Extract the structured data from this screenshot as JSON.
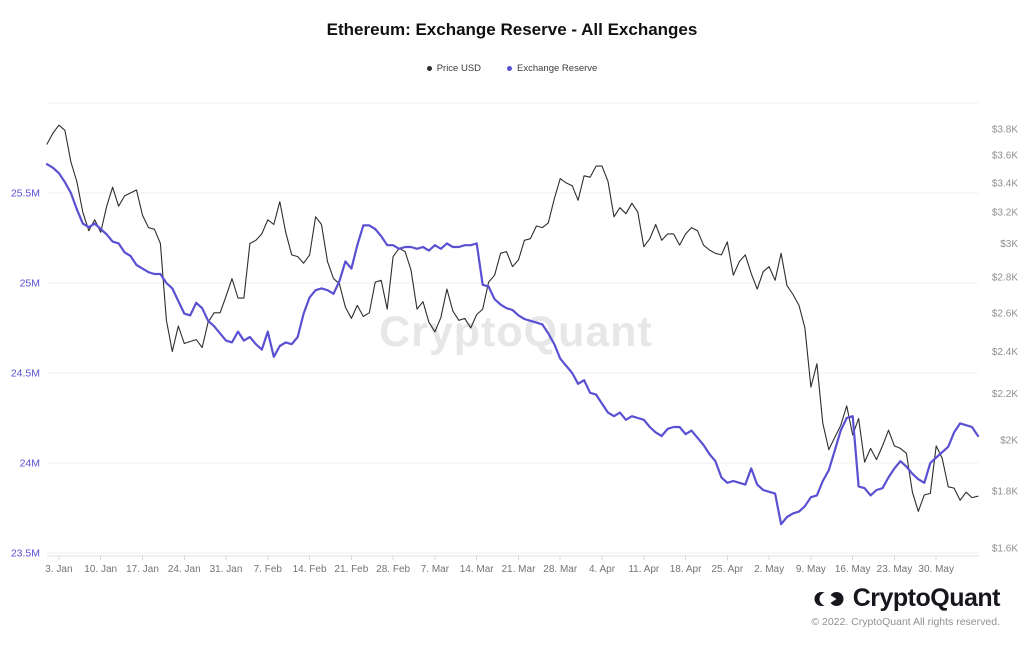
{
  "title": "Ethereum: Exchange Reserve - All Exchanges",
  "legend": [
    {
      "label": "Price USD",
      "color": "#2e2e2e"
    },
    {
      "label": "Exchange Reserve",
      "color": "#5a50d2"
    }
  ],
  "watermark": "CryptoQuant",
  "footer": {
    "logo_text": "CryptoQuant",
    "logo_icon": "cryptoquant-mark-icon",
    "copyright": "© 2022. CryptoQuant All rights reserved."
  },
  "chart_data": {
    "type": "line",
    "title": "Ethereum: Exchange Reserve - All Exchanges",
    "x_start_date": "1. Jan 2022",
    "x_end_date": "6. Jun 2022",
    "x_frequency": "daily",
    "grid": "horizontal-only",
    "legend_position": "top-center",
    "x_ticks": [
      {
        "label": "3. Jan",
        "day_index": 2
      },
      {
        "label": "10. Jan",
        "day_index": 9
      },
      {
        "label": "17. Jan",
        "day_index": 16
      },
      {
        "label": "24. Jan",
        "day_index": 23
      },
      {
        "label": "31. Jan",
        "day_index": 30
      },
      {
        "label": "7. Feb",
        "day_index": 37
      },
      {
        "label": "14. Feb",
        "day_index": 44
      },
      {
        "label": "21. Feb",
        "day_index": 51
      },
      {
        "label": "28. Feb",
        "day_index": 58
      },
      {
        "label": "7. Mar",
        "day_index": 65
      },
      {
        "label": "14. Mar",
        "day_index": 72
      },
      {
        "label": "21. Mar",
        "day_index": 79
      },
      {
        "label": "28. Mar",
        "day_index": 86
      },
      {
        "label": "4. Apr",
        "day_index": 93
      },
      {
        "label": "11. Apr",
        "day_index": 100
      },
      {
        "label": "18. Apr",
        "day_index": 107
      },
      {
        "label": "25. Apr",
        "day_index": 114
      },
      {
        "label": "2. May",
        "day_index": 121
      },
      {
        "label": "9. May",
        "day_index": 128
      },
      {
        "label": "16. May",
        "day_index": 135
      },
      {
        "label": "23. May",
        "day_index": 142
      },
      {
        "label": "30. May",
        "day_index": 149
      }
    ],
    "left_axis": {
      "series": "Exchange Reserve",
      "unit": "ETH (millions)",
      "scale": "linear",
      "color": "#5a50d2",
      "ticks": [
        {
          "label": "23.5M",
          "value": 23.5
        },
        {
          "label": "24M",
          "value": 24.0
        },
        {
          "label": "24.5M",
          "value": 24.5
        },
        {
          "label": "25M",
          "value": 25.0
        },
        {
          "label": "25.5M",
          "value": 25.5
        }
      ],
      "grid_values": [
        23.5,
        24.0,
        24.5,
        25.0,
        25.5,
        26.0
      ],
      "range": [
        23.48,
        26.0
      ]
    },
    "right_axis": {
      "series": "Price USD",
      "unit": "USD",
      "scale": "log",
      "color": "#8f8f8f",
      "ticks": [
        {
          "label": "$1.6K",
          "value": 1600
        },
        {
          "label": "$1.8K",
          "value": 1800
        },
        {
          "label": "$2K",
          "value": 2000
        },
        {
          "label": "$2.2K",
          "value": 2200
        },
        {
          "label": "$2.4K",
          "value": 2400
        },
        {
          "label": "$2.6K",
          "value": 2600
        },
        {
          "label": "$2.8K",
          "value": 2800
        },
        {
          "label": "$3K",
          "value": 3000
        },
        {
          "label": "$3.2K",
          "value": 3200
        },
        {
          "label": "$3.4K",
          "value": 3400
        },
        {
          "label": "$3.6K",
          "value": 3600
        },
        {
          "label": "$3.8K",
          "value": 3800
        }
      ],
      "range": [
        1560,
        4000
      ]
    },
    "series": [
      {
        "name": "Price USD",
        "axis": "right",
        "color": "#2e2e2e",
        "stroke_width": 1.1,
        "values": [
          3683,
          3769,
          3830,
          3790,
          3550,
          3410,
          3200,
          3080,
          3150,
          3070,
          3240,
          3370,
          3240,
          3310,
          3330,
          3350,
          3180,
          3100,
          3090,
          3000,
          2560,
          2400,
          2530,
          2440,
          2450,
          2460,
          2420,
          2550,
          2600,
          2600,
          2690,
          2790,
          2680,
          2680,
          3000,
          3020,
          3060,
          3150,
          3120,
          3270,
          3070,
          2930,
          2920,
          2880,
          2930,
          3170,
          3120,
          2890,
          2790,
          2760,
          2630,
          2570,
          2640,
          2580,
          2600,
          2770,
          2780,
          2620,
          2920,
          2970,
          2950,
          2840,
          2620,
          2660,
          2550,
          2500,
          2575,
          2730,
          2610,
          2560,
          2570,
          2520,
          2590,
          2620,
          2770,
          2810,
          2940,
          2950,
          2860,
          2900,
          3020,
          3030,
          3110,
          3100,
          3130,
          3290,
          3430,
          3400,
          3380,
          3280,
          3450,
          3440,
          3520,
          3520,
          3410,
          3170,
          3230,
          3190,
          3260,
          3200,
          2980,
          3030,
          3120,
          3020,
          3060,
          3060,
          2990,
          3060,
          3100,
          3080,
          2990,
          2960,
          2940,
          2930,
          3010,
          2810,
          2890,
          2930,
          2820,
          2730,
          2830,
          2860,
          2780,
          2940,
          2750,
          2700,
          2640,
          2520,
          2230,
          2340,
          2070,
          1960,
          2010,
          2060,
          2145,
          2020,
          2090,
          1910,
          1965,
          1920,
          1975,
          2040,
          1975,
          1965,
          1945,
          1795,
          1725,
          1785,
          1790,
          1975,
          1925,
          1815,
          1810,
          1765,
          1795,
          1775,
          1780
        ]
      },
      {
        "name": "Exchange Reserve",
        "axis": "left",
        "color": "#5a50d2",
        "stroke_width": 2.2,
        "values": [
          25.66,
          25.64,
          25.61,
          25.56,
          25.5,
          25.41,
          25.33,
          25.31,
          25.33,
          25.3,
          25.27,
          25.23,
          25.22,
          25.17,
          25.15,
          25.1,
          25.08,
          25.06,
          25.05,
          25.05,
          25.0,
          24.97,
          24.9,
          24.83,
          24.82,
          24.89,
          24.86,
          24.79,
          24.76,
          24.72,
          24.68,
          24.67,
          24.73,
          24.68,
          24.7,
          24.66,
          24.63,
          24.73,
          24.59,
          24.65,
          24.67,
          24.66,
          24.7,
          24.83,
          24.92,
          24.96,
          24.97,
          24.96,
          24.94,
          25.01,
          25.12,
          25.08,
          25.21,
          25.32,
          25.32,
          25.3,
          25.26,
          25.21,
          25.21,
          25.19,
          25.2,
          25.2,
          25.19,
          25.2,
          25.18,
          25.21,
          25.19,
          25.22,
          25.2,
          25.2,
          25.21,
          25.21,
          25.22,
          24.99,
          24.98,
          24.91,
          24.88,
          24.86,
          24.85,
          24.82,
          24.8,
          24.79,
          24.78,
          24.77,
          24.72,
          24.66,
          24.58,
          24.54,
          24.5,
          24.44,
          24.46,
          24.39,
          24.38,
          24.33,
          24.28,
          24.26,
          24.28,
          24.24,
          24.26,
          24.25,
          24.24,
          24.2,
          24.17,
          24.15,
          24.19,
          24.2,
          24.2,
          24.16,
          24.18,
          24.14,
          24.1,
          24.05,
          24.01,
          23.92,
          23.89,
          23.9,
          23.89,
          23.88,
          23.97,
          23.88,
          23.85,
          23.84,
          23.83,
          23.66,
          23.7,
          23.72,
          23.73,
          23.76,
          23.81,
          23.82,
          23.9,
          23.96,
          24.07,
          24.18,
          24.25,
          24.26,
          23.87,
          23.86,
          23.82,
          23.85,
          23.86,
          23.92,
          23.97,
          24.01,
          23.98,
          23.94,
          23.91,
          23.89,
          24.0,
          24.03,
          24.06,
          24.09,
          24.17,
          24.22,
          24.21,
          24.2,
          24.15
        ]
      }
    ]
  },
  "colors": {
    "grid": "#efefef",
    "axis_line": "#e2e2e2",
    "tick_mark": "#d9d9d9",
    "x_label": "#737373",
    "watermark": "#e7e7ea"
  }
}
